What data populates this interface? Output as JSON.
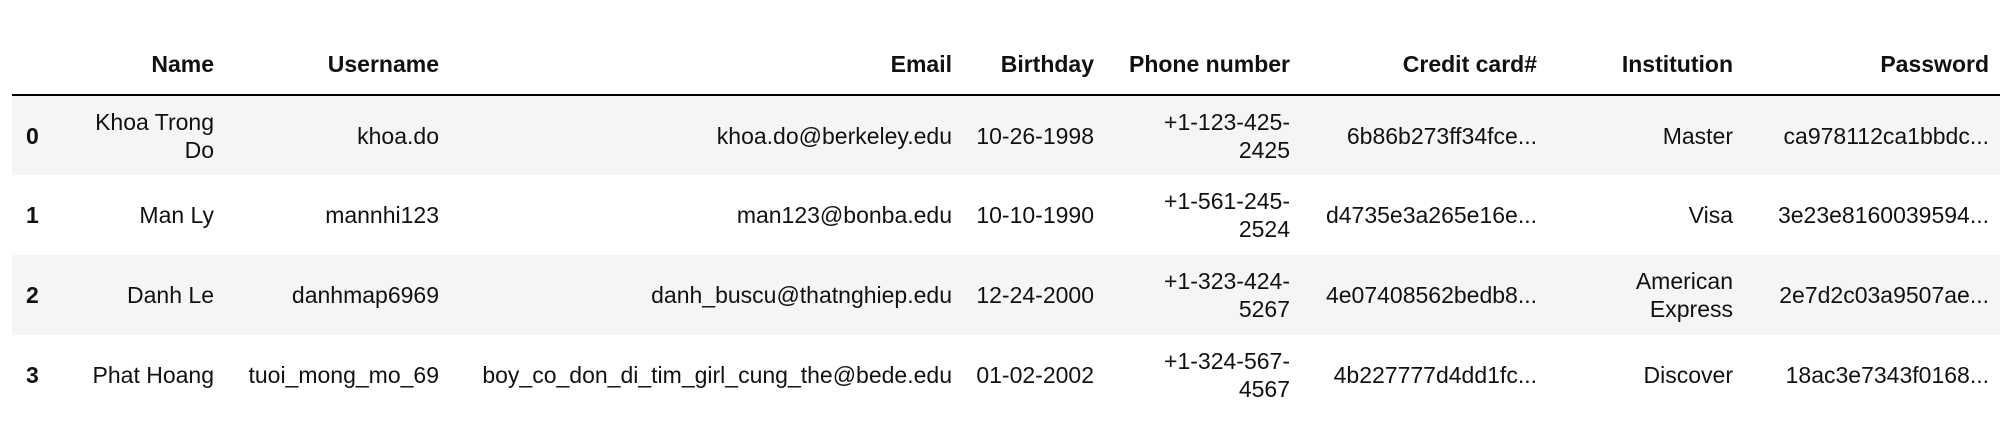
{
  "table": {
    "index_header": "",
    "columns": [
      "Name",
      "Username",
      "Email",
      "Birthday",
      "Phone number",
      "Credit card#",
      "Institution",
      "Password"
    ],
    "rows": [
      {
        "index": "0",
        "cells": [
          "Khoa Trong Do",
          "khoa.do",
          "khoa.do@berkeley.edu",
          "10-26-1998",
          "+1-123-425-2425",
          "6b86b273ff34fce...",
          "Master",
          "ca978112ca1bbdc..."
        ]
      },
      {
        "index": "1",
        "cells": [
          "Man Ly",
          "mannhi123",
          "man123@bonba.edu",
          "10-10-1990",
          "+1-561-245-2524",
          "d4735e3a265e16e...",
          "Visa",
          "3e23e8160039594..."
        ]
      },
      {
        "index": "2",
        "cells": [
          "Danh Le",
          "danhmap6969",
          "danh_buscu@thatnghiep.edu",
          "12-24-2000",
          "+1-323-424-5267",
          "4e07408562bedb8...",
          "American Express",
          "2e7d2c03a9507ae..."
        ]
      },
      {
        "index": "3",
        "cells": [
          "Phat Hoang",
          "tuoi_mong_mo_69",
          "boy_co_don_di_tim_girl_cung_the@bede.edu",
          "01-02-2002",
          "+1-324-567-4567",
          "4b227777d4dd1fc...",
          "Discover",
          "18ac3e7343f0168..."
        ]
      }
    ]
  }
}
